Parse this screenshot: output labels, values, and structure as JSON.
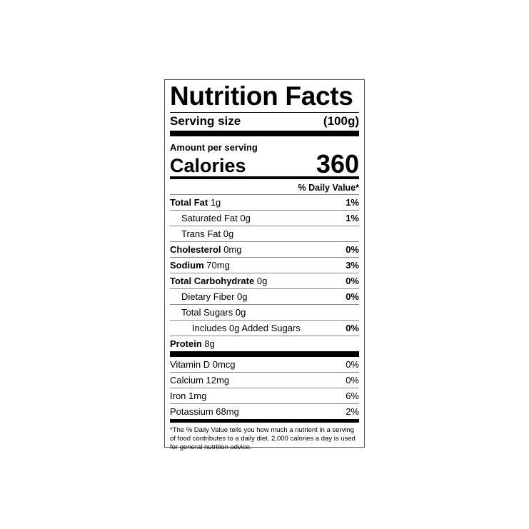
{
  "title": "Nutrition Facts",
  "serving": {
    "label": "Serving size",
    "value": "(100g)"
  },
  "amount_per_serving": "Amount per serving",
  "calories": {
    "label": "Calories",
    "value": "360"
  },
  "daily_value_header": "% Daily Value*",
  "nutrients": [
    {
      "name": "Total Fat",
      "amount": "1g",
      "dv": "1%",
      "bold": true,
      "indent": 0
    },
    {
      "name": "Saturated Fat",
      "amount": "0g",
      "dv": "1%",
      "bold": false,
      "indent": 1
    },
    {
      "name": "Trans Fat",
      "amount": "0g",
      "dv": "",
      "bold": false,
      "indent": 1
    },
    {
      "name": "Cholesterol",
      "amount": "0mg",
      "dv": "0%",
      "bold": true,
      "indent": 0
    },
    {
      "name": "Sodium",
      "amount": "70mg",
      "dv": "3%",
      "bold": true,
      "indent": 0
    },
    {
      "name": "Total Carbohydrate",
      "amount": "0g",
      "dv": "0%",
      "bold": true,
      "indent": 0
    },
    {
      "name": "Dietary Fiber",
      "amount": "0g",
      "dv": "0%",
      "bold": false,
      "indent": 1
    },
    {
      "name": "Total Sugars",
      "amount": "0g",
      "dv": "",
      "bold": false,
      "indent": 1
    },
    {
      "name": "Includes 0g Added Sugars",
      "amount": "",
      "dv": "0%",
      "bold": false,
      "indent": 2
    },
    {
      "name": "Protein",
      "amount": "8g",
      "dv": "",
      "bold": true,
      "indent": 0
    }
  ],
  "vitamins": [
    {
      "name": "Vitamin D 0mcg",
      "dv": "0%"
    },
    {
      "name": "Calcium 12mg",
      "dv": "0%"
    },
    {
      "name": "Iron 1mg",
      "dv": "6%"
    },
    {
      "name": "Potassium 68mg",
      "dv": "2%"
    }
  ],
  "footnote": "*The % Daily Value tells you how much a nutrient in a serving of food contributes to a daily diet. 2,000 calories a day is used for general nutrition advice."
}
